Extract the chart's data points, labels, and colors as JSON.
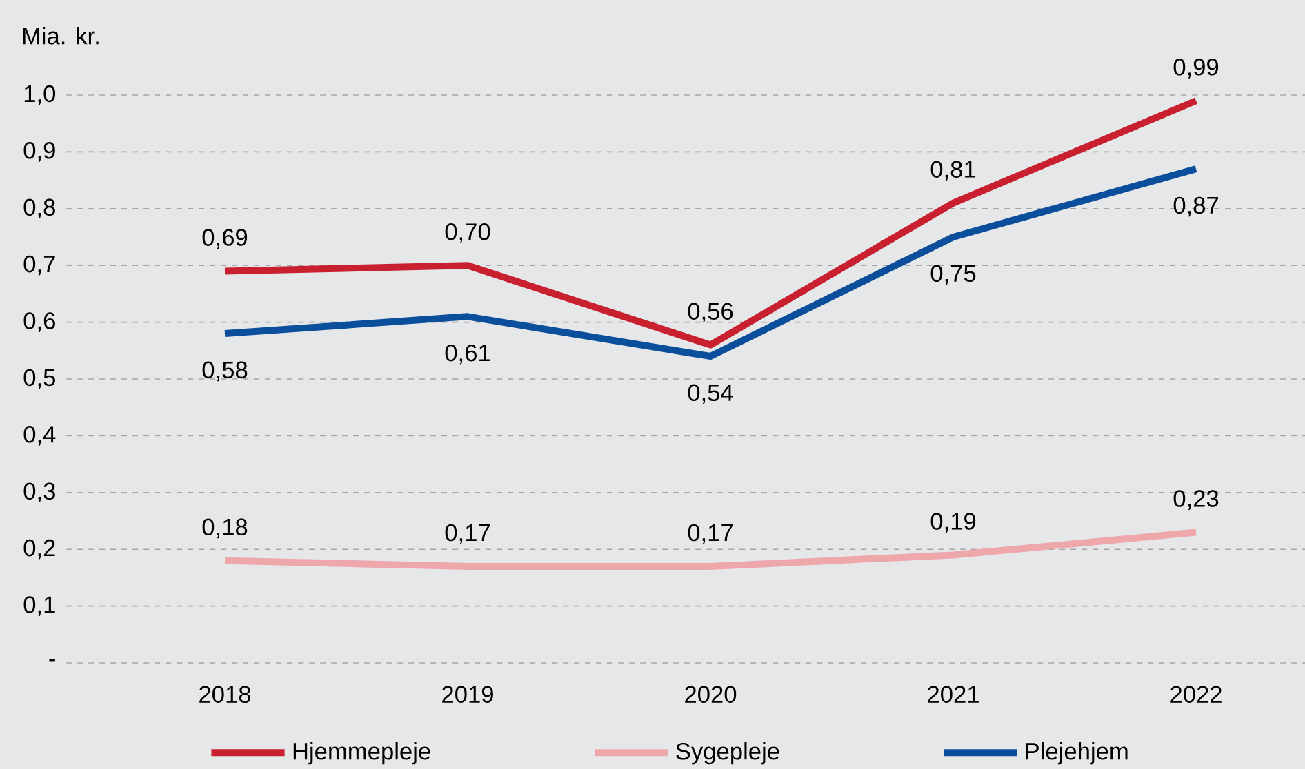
{
  "chart_data": {
    "type": "line",
    "ylabel": "Mia. kr.",
    "categories": [
      "2018",
      "2019",
      "2020",
      "2021",
      "2022"
    ],
    "ylim": [
      0,
      1.0
    ],
    "yticks": [
      {
        "value": 0,
        "label": "-"
      },
      {
        "value": 0.1,
        "label": "0,1"
      },
      {
        "value": 0.2,
        "label": "0,2"
      },
      {
        "value": 0.3,
        "label": "0,3"
      },
      {
        "value": 0.4,
        "label": "0,4"
      },
      {
        "value": 0.5,
        "label": "0,5"
      },
      {
        "value": 0.6,
        "label": "0,6"
      },
      {
        "value": 0.7,
        "label": "0,7"
      },
      {
        "value": 0.8,
        "label": "0,8"
      },
      {
        "value": 0.9,
        "label": "0,9"
      },
      {
        "value": 1.0,
        "label": "1,0"
      }
    ],
    "grid": "y",
    "legend": "bottom",
    "marker": "none",
    "line_style": "solid",
    "series": [
      {
        "name": "Hjemmepleje",
        "color": "#c8202f",
        "values": [
          0.69,
          0.7,
          0.56,
          0.81,
          0.99
        ],
        "value_labels": [
          "0,69",
          "0,70",
          "0,56",
          "0,81",
          "0,99"
        ]
      },
      {
        "name": "Sygepleje",
        "color": "#eea8ac",
        "values": [
          0.18,
          0.17,
          0.17,
          0.19,
          0.23
        ],
        "value_labels": [
          "0,18",
          "0,17",
          "0,17",
          "0,19",
          "0,23"
        ]
      },
      {
        "name": "Plejehjem",
        "color": "#0b4f9c",
        "values": [
          0.58,
          0.61,
          0.54,
          0.75,
          0.87
        ],
        "value_labels": [
          "0,58",
          "0,61",
          "0,54",
          "0,75",
          "0,87"
        ]
      }
    ]
  }
}
